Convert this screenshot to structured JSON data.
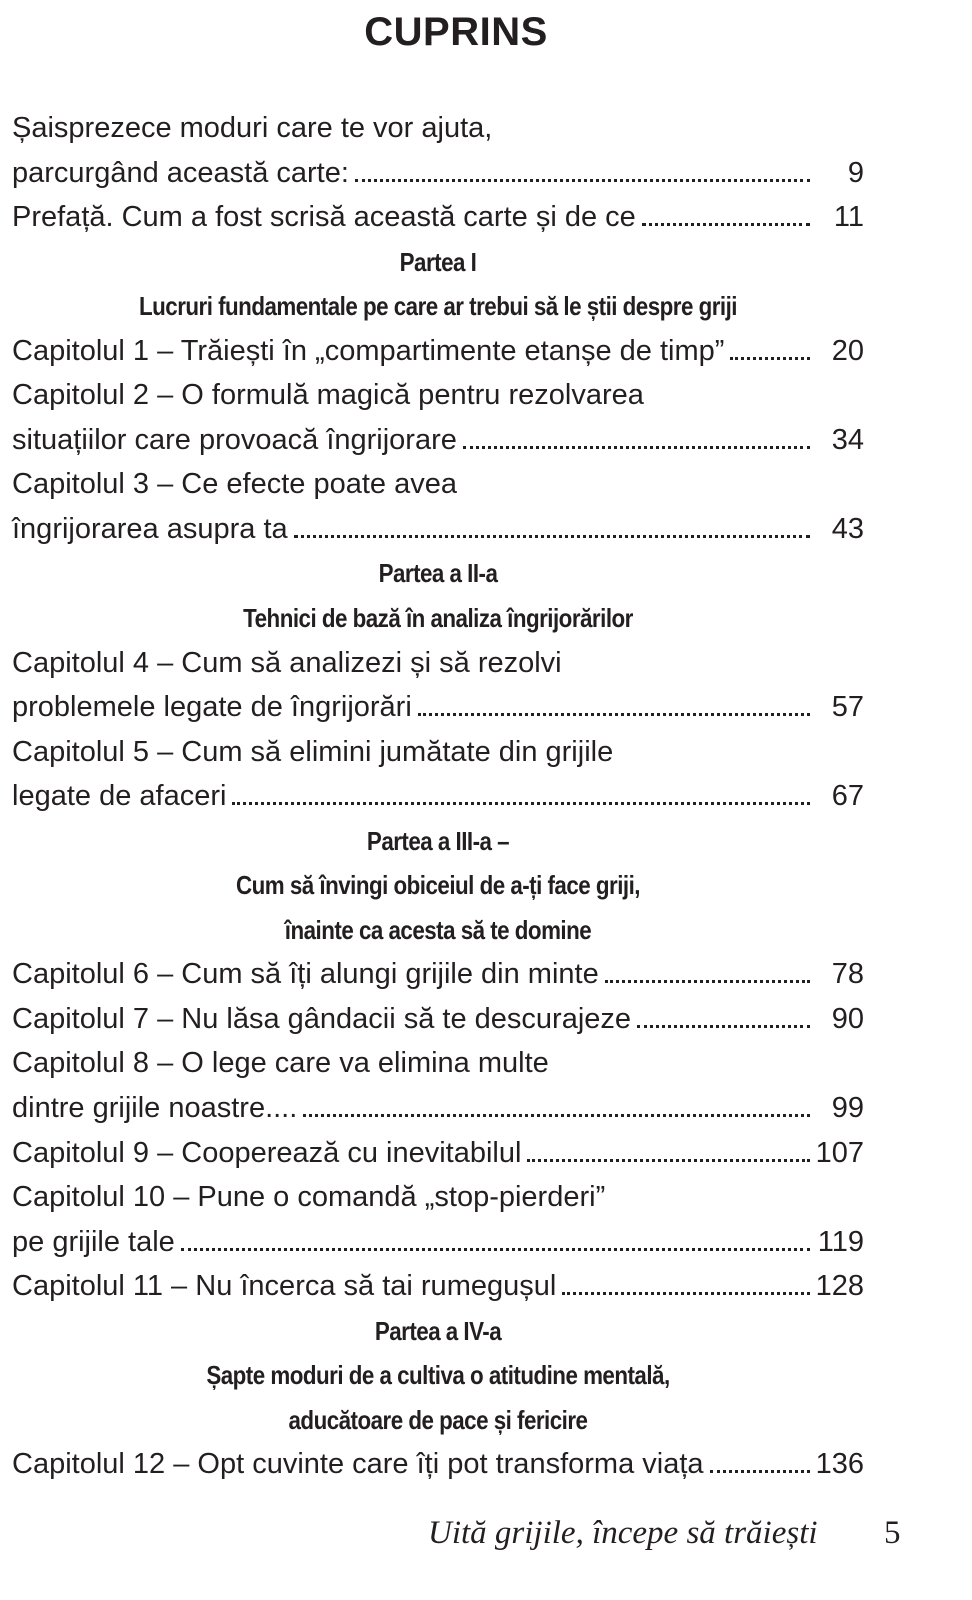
{
  "title": "CUPRINS",
  "sections": [
    {
      "entries": [
        {
          "lines": [
            "Șaisprezece moduri care te vor ajuta,",
            "parcurgând această carte:"
          ],
          "page": 9
        },
        {
          "lines": [
            "Prefață. Cum a fost scrisă această carte și de ce"
          ],
          "page": 11
        }
      ]
    },
    {
      "heading": [
        "Partea I",
        "Lucruri fundamentale pe care ar trebui să le știi despre griji"
      ],
      "entries": [
        {
          "lines": [
            "Capitolul 1 – Trăiești în „compartimente etanșe de timp”"
          ],
          "page": 20
        },
        {
          "lines": [
            "Capitolul 2 – O formulă magică pentru rezolvarea",
            "situațiilor care provoacă îngrijorare"
          ],
          "page": 34
        },
        {
          "lines": [
            "Capitolul 3 – Ce efecte poate avea",
            "îngrijorarea asupra ta"
          ],
          "page": 43
        }
      ]
    },
    {
      "heading": [
        "Partea a II-a",
        "Tehnici de bază în analiza îngrijorărilor"
      ],
      "entries": [
        {
          "lines": [
            "Capitolul 4 – Cum să analizezi și să rezolvi",
            "problemele legate de îngrijorări"
          ],
          "page": 57
        },
        {
          "lines": [
            "Capitolul 5 – Cum să elimini jumătate din grijile",
            "legate de afaceri"
          ],
          "page": 67
        }
      ]
    },
    {
      "heading": [
        "Partea a III-a –",
        "Cum să învingi obiceiul de a-ți face griji,",
        "înainte ca acesta să te domine"
      ],
      "entries": [
        {
          "lines": [
            "Capitolul 6 – Cum să îți alungi grijile din minte"
          ],
          "page": 78
        },
        {
          "lines": [
            "Capitolul 7 – Nu lăsa gândacii să te descurajeze"
          ],
          "page": 90
        },
        {
          "lines": [
            "Capitolul 8 – O lege care va elimina multe",
            "dintre grijile noastre...."
          ],
          "page": 99
        },
        {
          "lines": [
            "Capitolul 9 – Cooperează cu inevitabilul"
          ],
          "page": 107
        },
        {
          "lines": [
            "Capitolul 10 – Pune o comandă „stop-pierderi”",
            "pe grijile tale"
          ],
          "page": 119
        },
        {
          "lines": [
            "Capitolul 11 – Nu încerca să tai rumegușul"
          ],
          "page": 128
        }
      ]
    },
    {
      "heading": [
        "Partea a IV-a",
        "Șapte moduri de a cultiva o atitudine mentală,",
        "aducătoare de pace și fericire"
      ],
      "entries": [
        {
          "lines": [
            "Capitolul 12 – Opt cuvinte care îți pot transforma viața"
          ],
          "page": 136
        }
      ]
    }
  ],
  "footer": {
    "book_title": "Uită grijile, începe să trăiești",
    "page_number": 5
  }
}
